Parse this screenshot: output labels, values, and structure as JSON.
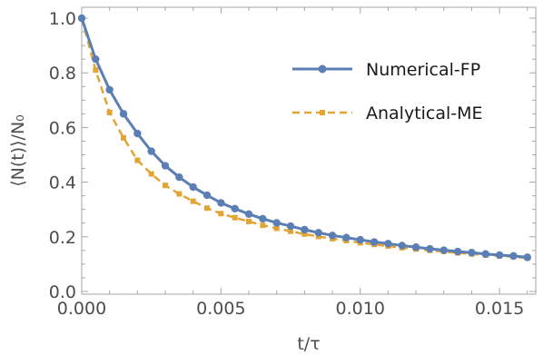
{
  "chart_data": {
    "type": "line",
    "xlabel": "t/τ",
    "ylabel": "⟨N(t)⟩/N₀",
    "xlim": [
      0,
      0.0163
    ],
    "ylim": [
      -0.01,
      1.04
    ],
    "xticks": [
      0.0,
      0.005,
      0.01,
      0.015
    ],
    "xtick_labels": [
      "0.000",
      "0.005",
      "0.010",
      "0.015"
    ],
    "yticks": [
      0.0,
      0.2,
      0.4,
      0.6,
      0.8,
      1.0
    ],
    "ytick_labels": [
      "0.0",
      "0.2",
      "0.4",
      "0.6",
      "0.8",
      "1.0"
    ],
    "grid": false,
    "legend_position": "top-right",
    "x": [
      0.0,
      0.0005,
      0.001,
      0.0015,
      0.002,
      0.0025,
      0.003,
      0.0035,
      0.004,
      0.0045,
      0.005,
      0.0055,
      0.006,
      0.0065,
      0.007,
      0.0075,
      0.008,
      0.0085,
      0.009,
      0.0095,
      0.01,
      0.0105,
      0.011,
      0.0115,
      0.012,
      0.0125,
      0.013,
      0.0135,
      0.014,
      0.0145,
      0.015,
      0.0155,
      0.016
    ],
    "series": [
      {
        "name": "Numerical-FP",
        "color": "#5b7fb4",
        "style": "solid",
        "marker": "circle",
        "values": [
          1.0,
          0.85,
          0.738,
          0.65,
          0.578,
          0.513,
          0.46,
          0.418,
          0.382,
          0.352,
          0.324,
          0.303,
          0.283,
          0.266,
          0.251,
          0.239,
          0.226,
          0.215,
          0.205,
          0.197,
          0.189,
          0.181,
          0.175,
          0.168,
          0.162,
          0.156,
          0.151,
          0.146,
          0.142,
          0.137,
          0.133,
          0.13,
          0.125
        ]
      },
      {
        "name": "Analytical-ME",
        "color": "#e2a535",
        "style": "dashed",
        "marker": "square",
        "values": [
          1.0,
          0.81,
          0.655,
          0.562,
          0.48,
          0.43,
          0.388,
          0.357,
          0.33,
          0.305,
          0.285,
          0.27,
          0.256,
          0.242,
          0.231,
          0.22,
          0.21,
          0.201,
          0.193,
          0.186,
          0.178,
          0.172,
          0.166,
          0.16,
          0.155,
          0.15,
          0.146,
          0.141,
          0.137,
          0.133,
          0.13,
          0.127,
          0.122
        ]
      }
    ]
  }
}
